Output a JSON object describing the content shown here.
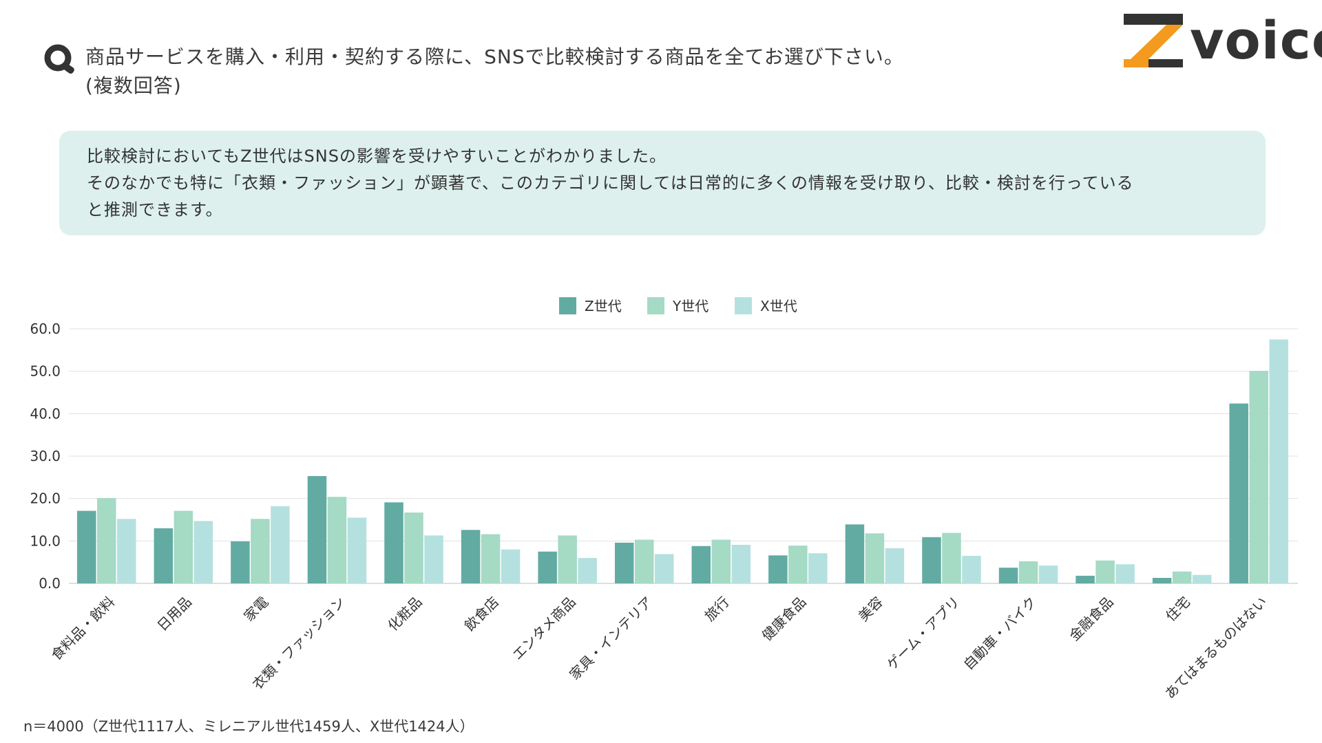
{
  "header": {
    "question_lines": [
      "商品サービスを購入・利用・契約する際に、SNSで比較検討する商品を全てお選び下さい。",
      "(複数回答)"
    ]
  },
  "logo": {
    "text": "voice"
  },
  "summary": {
    "lines": [
      "比較検討においてもZ世代はSNSの影響を受けやすいことがわかりました。",
      "そのなかでも特に「衣類・ファッション」が顕著で、このカテゴリに関しては日常的に多くの情報を受け取り、比較・検討を行っている",
      "と推測できます。"
    ]
  },
  "chart_data": {
    "type": "bar",
    "categories": [
      "食料品・飲料",
      "日用品",
      "家電",
      "衣類・ファッション",
      "化粧品",
      "飲食店",
      "エンタメ商品",
      "家具・インテリア",
      "旅行",
      "健康食品",
      "美容",
      "ゲーム・アプリ",
      "自動車・バイク",
      "金融食品",
      "住宅",
      "あてはまるものはない"
    ],
    "series": [
      {
        "name": "Z世代",
        "color": "#62aba3",
        "values": [
          17.1,
          13.0,
          9.9,
          25.3,
          19.1,
          12.6,
          7.5,
          9.6,
          8.8,
          6.6,
          13.9,
          10.9,
          3.7,
          1.8,
          1.3,
          42.4
        ]
      },
      {
        "name": "Y世代",
        "color": "#a5dac5",
        "values": [
          20.1,
          17.1,
          15.2,
          20.4,
          16.7,
          11.6,
          11.3,
          10.3,
          10.3,
          8.9,
          11.8,
          11.9,
          5.2,
          5.4,
          2.8,
          50.1
        ]
      },
      {
        "name": "X世代",
        "color": "#b4e1df",
        "values": [
          15.2,
          14.7,
          18.2,
          15.5,
          11.3,
          8.0,
          6.0,
          6.9,
          9.1,
          7.1,
          8.3,
          6.5,
          4.2,
          4.5,
          2.0,
          57.5
        ]
      }
    ],
    "y_ticks": [
      "0.0",
      "10.0",
      "20.0",
      "30.0",
      "40.0",
      "50.0",
      "60.0"
    ],
    "ylim": [
      0,
      60
    ],
    "grid": true,
    "legend_position": "top-center",
    "colors": {
      "grid": "#e0e0e0",
      "axis": "#bdbdbd",
      "text": "#333333"
    }
  },
  "footnote": "n＝4000（Z世代1117人、ミレニアル世代1459人、X世代1424人）",
  "colors": {
    "logo_orange": "#f39a1f",
    "logo_dark": "#333333",
    "summary_bg": "#ddf0ee"
  }
}
